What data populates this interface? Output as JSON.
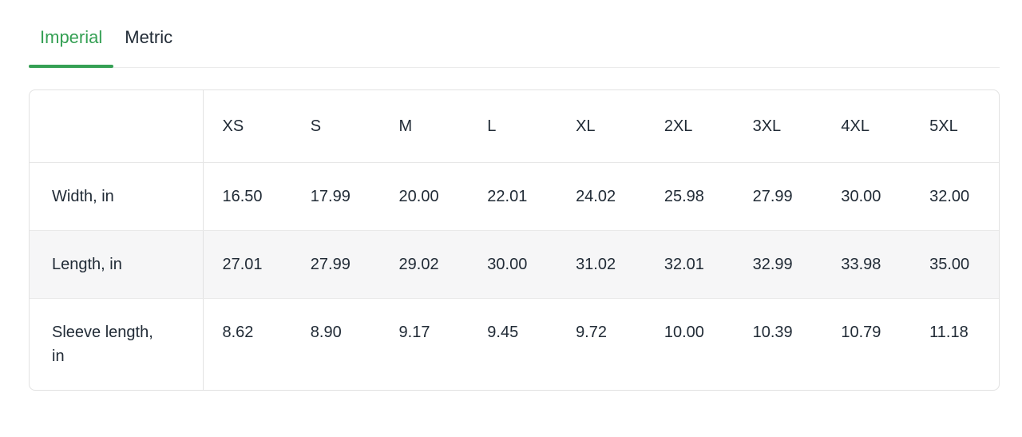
{
  "tabs": [
    {
      "label": "Imperial",
      "active": true
    },
    {
      "label": "Metric",
      "active": false
    }
  ],
  "table": {
    "columns": [
      "XS",
      "S",
      "M",
      "L",
      "XL",
      "2XL",
      "3XL",
      "4XL",
      "5XL"
    ],
    "rows": [
      {
        "label": "Width, in",
        "values": [
          "16.50",
          "17.99",
          "20.00",
          "22.01",
          "24.02",
          "25.98",
          "27.99",
          "30.00",
          "32.00"
        ]
      },
      {
        "label": "Length, in",
        "values": [
          "27.01",
          "27.99",
          "29.02",
          "30.00",
          "31.02",
          "32.01",
          "32.99",
          "33.98",
          "35.00"
        ]
      },
      {
        "label": "Sleeve length, in",
        "values": [
          "8.62",
          "8.90",
          "9.17",
          "9.45",
          "9.72",
          "10.00",
          "10.39",
          "10.79",
          "11.18"
        ]
      }
    ]
  },
  "colors": {
    "accent_green": "#35a054",
    "text": "#212b36",
    "stripe_row": "#f6f6f7",
    "border": "#e2e2e2"
  }
}
